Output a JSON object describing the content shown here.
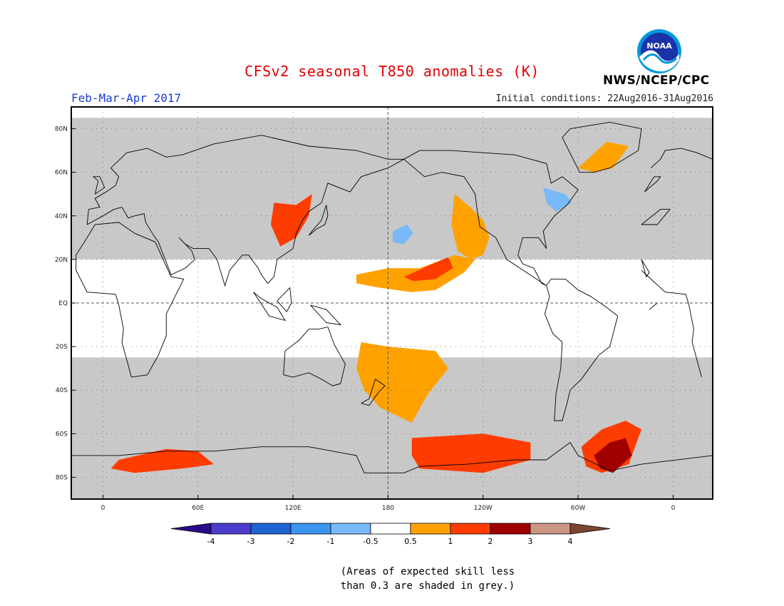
{
  "header": {
    "title": "CFSv2 seasonal T850 anomalies (K)",
    "period": "Feb-Mar-Apr 2017",
    "initial_conditions": "Initial conditions: 22Aug2016-31Aug2016",
    "agency": "NWS/NCEP/CPC"
  },
  "logo": {
    "text": "NOAA",
    "icon": "noaa-logo"
  },
  "axes": {
    "lat_ticks": [
      {
        "label": "80N",
        "lat": 80
      },
      {
        "label": "60N",
        "lat": 60
      },
      {
        "label": "40N",
        "lat": 40
      },
      {
        "label": "20N",
        "lat": 20
      },
      {
        "label": "EQ",
        "lat": 0
      },
      {
        "label": "20S",
        "lat": -20
      },
      {
        "label": "40S",
        "lat": -40
      },
      {
        "label": "60S",
        "lat": -60
      },
      {
        "label": "80S",
        "lat": -80
      }
    ],
    "lon_ticks": [
      {
        "label": "0",
        "lon": 0
      },
      {
        "label": "60E",
        "lon": 60
      },
      {
        "label": "120E",
        "lon": 120
      },
      {
        "label": "180",
        "lon": 180
      },
      {
        "label": "120W",
        "lon": 240
      },
      {
        "label": "60W",
        "lon": 300
      },
      {
        "label": "0",
        "lon": 360
      }
    ],
    "lon_range": [
      -20,
      385
    ],
    "lat_range": [
      -90,
      90
    ]
  },
  "colorbar": {
    "labels": [
      "-4",
      "-3",
      "-2",
      "-1",
      "-0.5",
      "0.5",
      "1",
      "2",
      "3",
      "4"
    ],
    "colors": [
      "#2a0a8c",
      "#4a3ccc",
      "#1e64d2",
      "#3c96f0",
      "#78b9fa",
      "#ffffff",
      "#ffa200",
      "#ff3c00",
      "#a00000",
      "#c89682",
      "#7a4632"
    ],
    "skill_mask_color": "#c8c8c8"
  },
  "note": {
    "line1": "(Areas of expected skill less",
    "line2": "than 0.3 are shaded in grey.)"
  },
  "anomaly_regions": [
    {
      "name": "North Atlantic warm patch",
      "level": "0.5 to 1",
      "color": "#ffa200",
      "poly": [
        [
          300,
          62
        ],
        [
          318,
          74
        ],
        [
          332,
          72
        ],
        [
          322,
          62
        ],
        [
          310,
          60
        ]
      ]
    },
    {
      "name": "Western North America warm",
      "level": "0.5 to 1",
      "color": "#ffa200",
      "poly": [
        [
          222,
          50
        ],
        [
          232,
          44
        ],
        [
          240,
          38
        ],
        [
          244,
          30
        ],
        [
          240,
          22
        ],
        [
          232,
          20
        ],
        [
          224,
          24
        ],
        [
          220,
          36
        ]
      ]
    },
    {
      "name": "Tropical Pacific warm band",
      "level": "0.5 to 1",
      "color": "#ffa200",
      "poly": [
        [
          160,
          13
        ],
        [
          180,
          16
        ],
        [
          200,
          16
        ],
        [
          222,
          22
        ],
        [
          235,
          20
        ],
        [
          228,
          14
        ],
        [
          210,
          6
        ],
        [
          195,
          5
        ],
        [
          175,
          7
        ],
        [
          160,
          9
        ]
      ]
    },
    {
      "name": "Central North Pacific strong warm",
      "level": "1 to 2",
      "color": "#ff3c00",
      "poly": [
        [
          190,
          12
        ],
        [
          205,
          17
        ],
        [
          218,
          21
        ],
        [
          221,
          16
        ],
        [
          210,
          11
        ],
        [
          196,
          10
        ]
      ]
    },
    {
      "name": "Central North Pacific cool",
      "level": "-1 to -0.5",
      "color": "#78b9fa",
      "poly": [
        [
          183,
          33
        ],
        [
          192,
          36
        ],
        [
          196,
          32
        ],
        [
          190,
          27
        ],
        [
          183,
          28
        ]
      ]
    },
    {
      "name": "Eastern North America cool",
      "level": "-1 to -0.5",
      "color": "#78b9fa",
      "poly": [
        [
          278,
          53
        ],
        [
          292,
          50
        ],
        [
          296,
          46
        ],
        [
          286,
          42
        ],
        [
          280,
          46
        ]
      ]
    },
    {
      "name": "East Asia strong warm",
      "level": "1 to 2",
      "color": "#ff3c00",
      "poly": [
        [
          108,
          46
        ],
        [
          122,
          45
        ],
        [
          132,
          50
        ],
        [
          130,
          40
        ],
        [
          122,
          30
        ],
        [
          112,
          26
        ],
        [
          106,
          36
        ]
      ]
    },
    {
      "name": "South Pacific warm",
      "level": "0.5 to 1",
      "color": "#ffa200",
      "poly": [
        [
          163,
          -18
        ],
        [
          180,
          -20
        ],
        [
          210,
          -22
        ],
        [
          218,
          -30
        ],
        [
          205,
          -42
        ],
        [
          195,
          -55
        ],
        [
          175,
          -48
        ],
        [
          165,
          -40
        ],
        [
          160,
          -30
        ]
      ]
    },
    {
      "name": "Southern Ocean strong warm",
      "level": "1 to 2",
      "color": "#ff3c00",
      "poly": [
        [
          195,
          -62
        ],
        [
          240,
          -60
        ],
        [
          270,
          -64
        ],
        [
          270,
          -72
        ],
        [
          240,
          -78
        ],
        [
          200,
          -76
        ],
        [
          195,
          -70
        ]
      ]
    },
    {
      "name": "Weddell Sea strong warm",
      "level": "1 to 2",
      "color": "#ff3c00",
      "poly": [
        [
          302,
          -66
        ],
        [
          315,
          -58
        ],
        [
          330,
          -54
        ],
        [
          340,
          -58
        ],
        [
          332,
          -74
        ],
        [
          315,
          -78
        ],
        [
          305,
          -75
        ]
      ]
    },
    {
      "name": "Weddell Sea very strong warm",
      "level": "2 to 3",
      "color": "#a00000",
      "poly": [
        [
          310,
          -70
        ],
        [
          320,
          -64
        ],
        [
          330,
          -62
        ],
        [
          334,
          -70
        ],
        [
          322,
          -78
        ],
        [
          314,
          -76
        ]
      ]
    },
    {
      "name": "Indian Ocean sector Antarctic warm",
      "level": "1 to 2",
      "color": "#ff3c00",
      "poly": [
        [
          10,
          -72
        ],
        [
          40,
          -67
        ],
        [
          60,
          -68
        ],
        [
          70,
          -74
        ],
        [
          50,
          -76
        ],
        [
          20,
          -78
        ],
        [
          5,
          -76
        ]
      ]
    }
  ],
  "skill_masked_regions": [
    {
      "name": "Northern Hemisphere extratropics",
      "poly": [
        [
          -20,
          85
        ],
        [
          385,
          85
        ],
        [
          385,
          20
        ],
        [
          -20,
          20
        ]
      ]
    },
    {
      "name": "Southern Ocean and Antarctica",
      "poly": [
        [
          -20,
          -25
        ],
        [
          385,
          -25
        ],
        [
          385,
          -90
        ],
        [
          -20,
          -90
        ]
      ]
    }
  ]
}
